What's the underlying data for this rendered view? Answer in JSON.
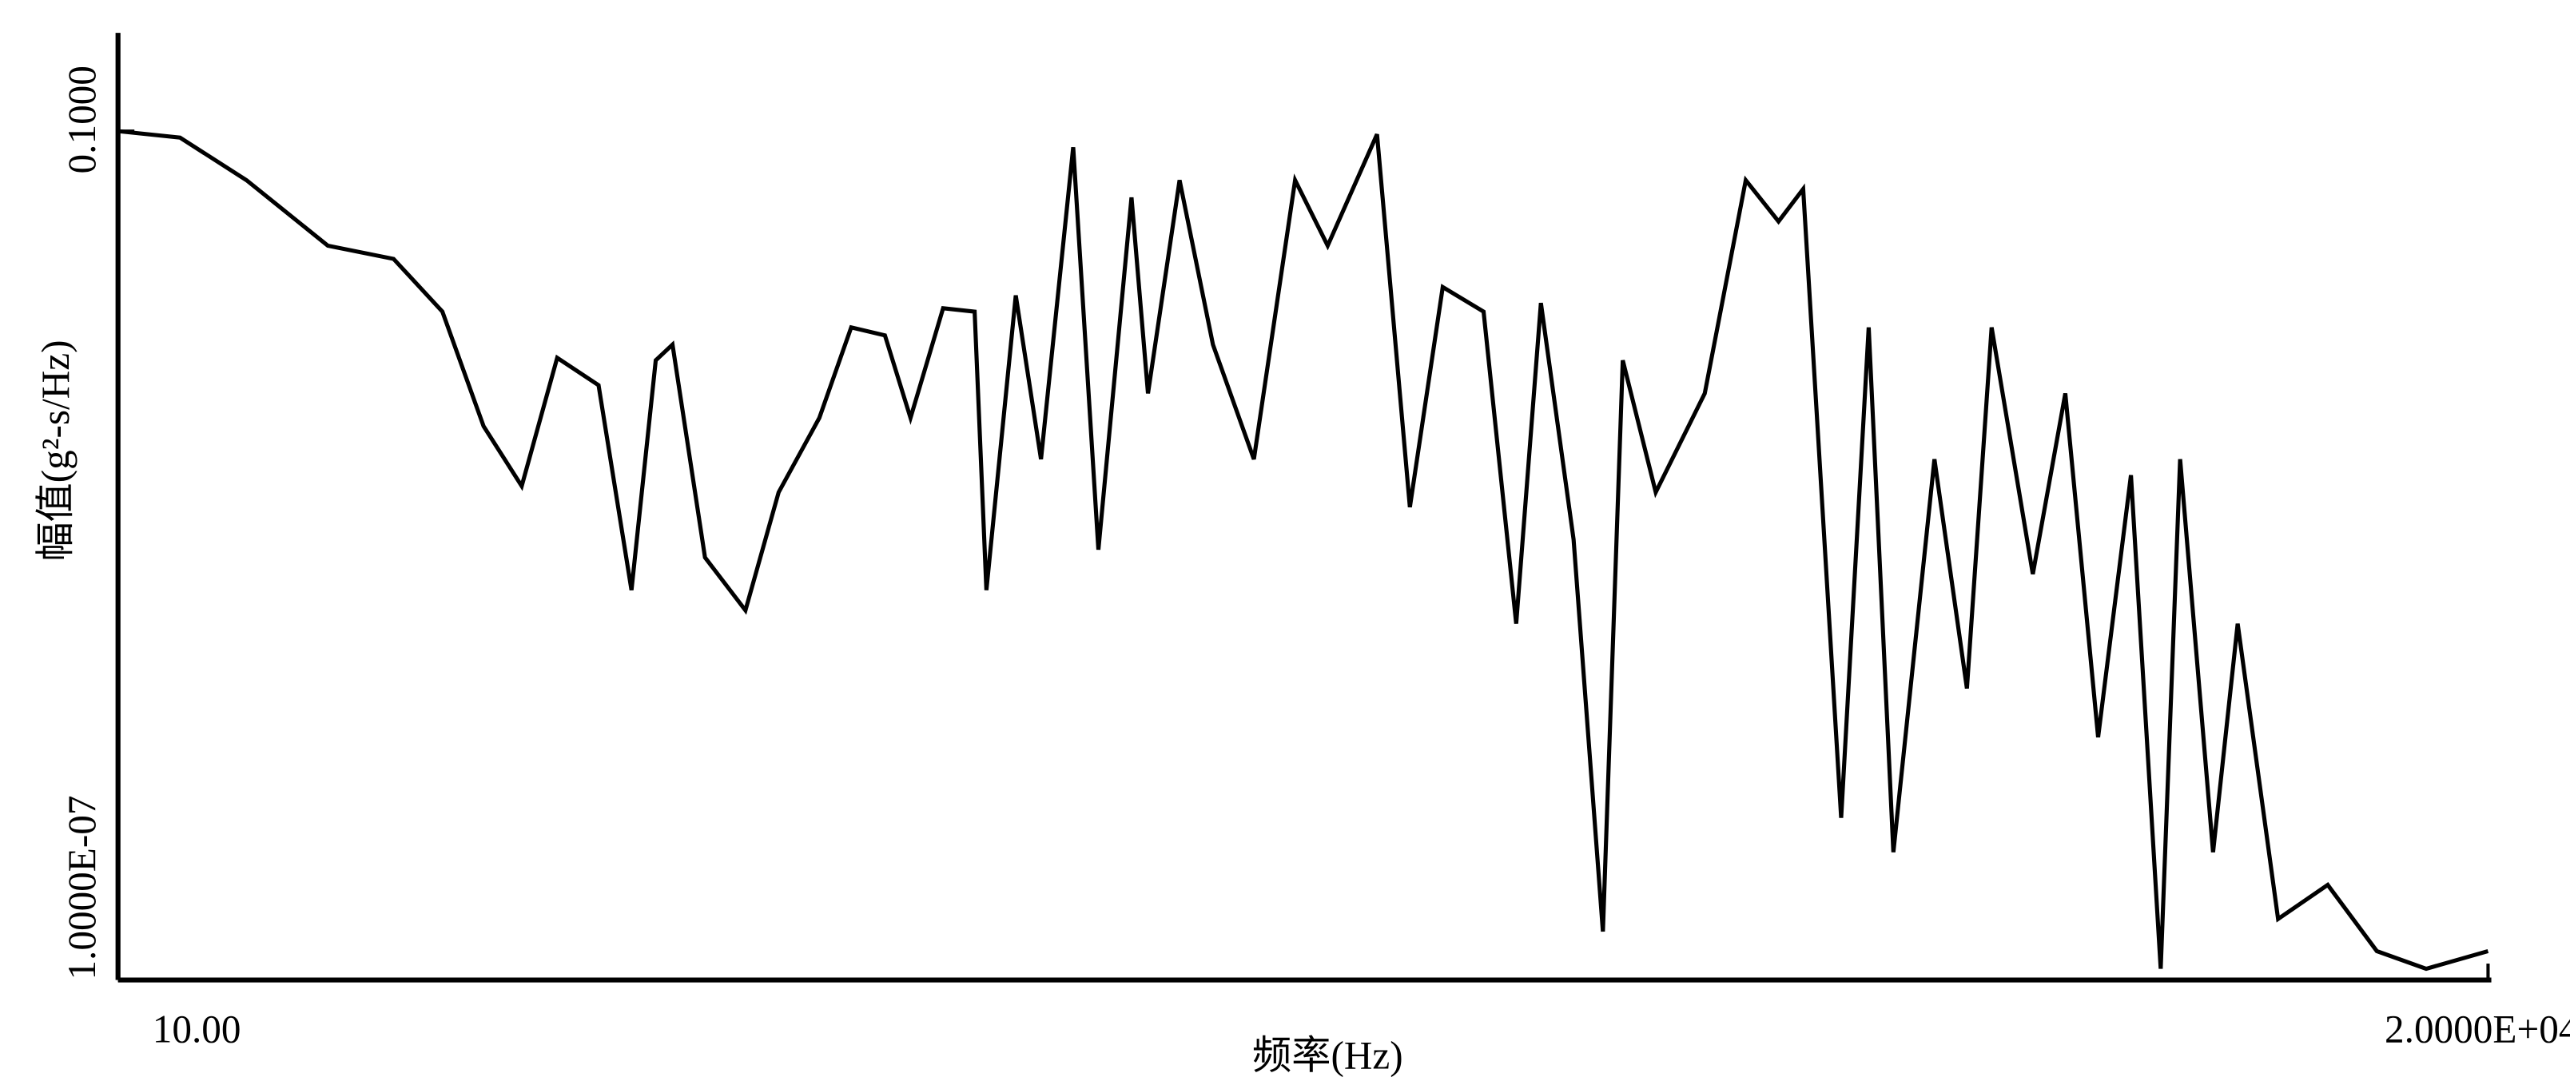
{
  "chart_data": {
    "type": "line",
    "x_label": "频率(Hz)",
    "y_label": "幅值(g²-s/Hz)",
    "xscale": "log",
    "yscale": "log",
    "xlim": [
      10,
      20000
    ],
    "ylim": [
      1e-07,
      0.1
    ],
    "xticks": [
      {
        "value": 10,
        "label": "10.00"
      },
      {
        "value": 20000,
        "label": "2.0000E+04"
      }
    ],
    "yticks": [
      {
        "value": 1e-07,
        "label": "1.0000E-07"
      },
      {
        "value": 0.1,
        "label": "0.1000"
      }
    ],
    "series": [
      {
        "color": "#000000",
        "x": [
          10,
          12.2,
          15.1,
          19.6,
          24.2,
          28.3,
          32.3,
          36.5,
          40.9,
          46.7,
          51.9,
          56.1,
          59.2,
          65.7,
          74.8,
          83.2,
          94.8,
          105,
          117,
          127,
          141,
          156,
          162,
          178,
          193,
          214,
          232,
          258,
          272,
          301,
          335,
          382,
          436,
          484,
          567,
          630,
          700,
          798,
          886,
          959,
          1065,
          1170,
          1247,
          1386,
          1622,
          1850,
          2055,
          2224,
          2512,
          2744,
          2970,
          3388,
          3760,
          4070,
          4645,
          5155,
          5727,
          6363,
          7000,
          7450,
          8280,
          8960,
          10200,
          11960,
          14000,
          16400,
          20000
        ],
        "values": [
          0.1,
          0.09,
          0.045,
          0.0155,
          0.0125,
          0.0053,
          0.00082,
          0.00031,
          0.0025,
          0.0016,
          5.7e-05,
          0.0024,
          0.0031,
          9.7e-05,
          4.1e-05,
          0.00028,
          0.00094,
          0.0041,
          0.0036,
          0.00094,
          0.0056,
          0.0053,
          5.7e-05,
          0.0069,
          0.00048,
          0.077,
          0.00011,
          0.034,
          0.0014,
          0.045,
          0.0031,
          0.00048,
          0.045,
          0.0155,
          0.095,
          0.00022,
          0.0079,
          0.0053,
          3.3e-05,
          0.0061,
          0.00013,
          2.2e-07,
          0.0024,
          0.00028,
          0.0014,
          0.045,
          0.023,
          0.039,
          1.4e-06,
          0.0041,
          8e-07,
          0.00048,
          1.15e-05,
          0.0041,
          7.4e-05,
          0.0014,
          5.2e-06,
          0.00037,
          1.2e-07,
          0.00048,
          8e-07,
          3.3e-05,
          2.7e-07,
          4.7e-07,
          1.6e-07,
          1.2e-07,
          1.6e-07
        ]
      }
    ]
  }
}
